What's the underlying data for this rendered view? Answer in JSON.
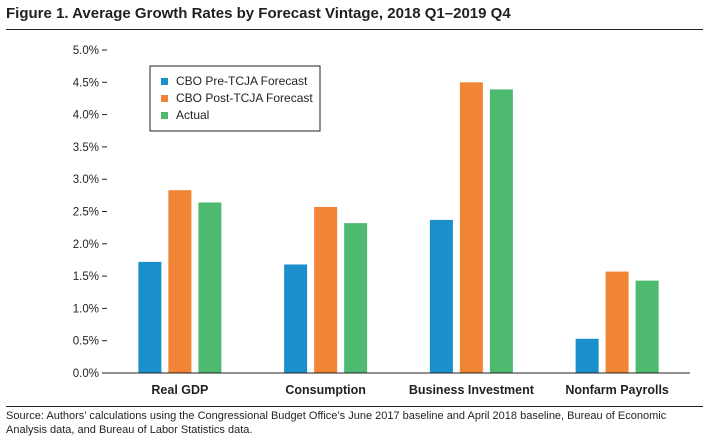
{
  "header": {
    "title": "Figure 1. Average Growth Rates by Forecast Vintage, 2018 Q1–2019 Q4"
  },
  "footer": {
    "source": "Source: Authors’ calculations using the Congressional Budget Office’s June 2017 baseline and April 2018 baseline, Bureau of Economic Analysis data, and Bureau of Labor Statistics data."
  },
  "chart_data": {
    "type": "bar",
    "title": "Figure 1. Average Growth Rates by Forecast Vintage, 2018 Q1–2019 Q4",
    "xlabel": "",
    "ylabel": "",
    "ylim": [
      0,
      5
    ],
    "yticks": [
      0,
      0.5,
      1,
      1.5,
      2,
      2.5,
      3,
      3.5,
      4,
      4.5,
      5
    ],
    "ytick_labels": [
      "0.0%",
      "0.5%",
      "1.0%",
      "1.5%",
      "2.0%",
      "2.5%",
      "3.0%",
      "3.5%",
      "4.0%",
      "4.5%",
      "5.0%"
    ],
    "categories": [
      "Real GDP",
      "Consumption",
      "Business Investment",
      "Nonfarm Payrolls"
    ],
    "series": [
      {
        "name": "CBO Pre-TCJA Forecast",
        "color": "#1b8fcb",
        "values": [
          1.72,
          1.68,
          2.37,
          0.53
        ]
      },
      {
        "name": "CBO Post-TCJA Forecast",
        "color": "#f28435",
        "values": [
          2.83,
          2.57,
          4.5,
          1.57
        ]
      },
      {
        "name": "Actual",
        "color": "#4dba70",
        "values": [
          2.64,
          2.32,
          4.39,
          1.43
        ]
      }
    ],
    "legend": {
      "position": "top-left",
      "boxed": true
    },
    "grid": false
  }
}
